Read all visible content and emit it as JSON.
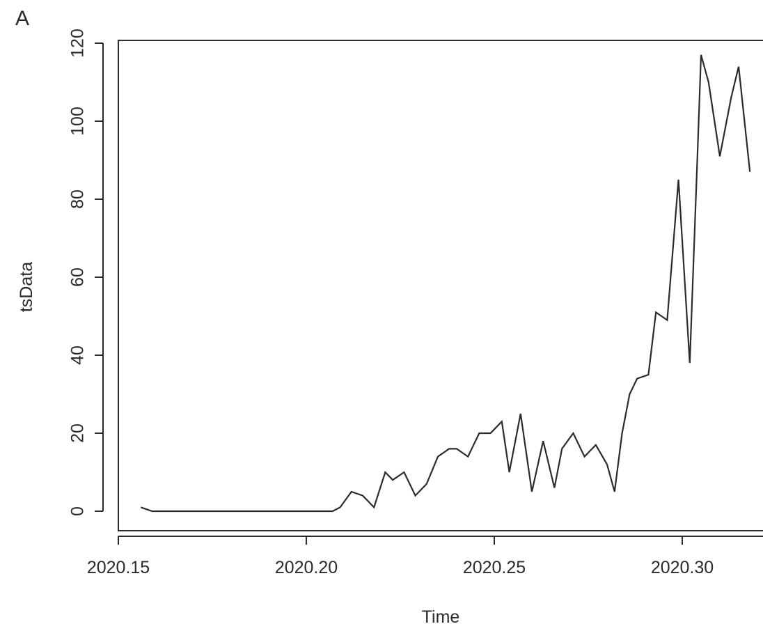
{
  "panel_label": "A",
  "chart_data": {
    "type": "line",
    "xlabel": "Time",
    "ylabel": "tsData",
    "x_ticks": [
      "2020.15",
      "2020.20",
      "2020.25",
      "2020.30"
    ],
    "y_ticks": [
      "0",
      "20",
      "40",
      "60",
      "80",
      "100",
      "120"
    ],
    "xlim": [
      2020.15,
      2020.32
    ],
    "ylim": [
      0,
      120
    ],
    "grid": false,
    "line_color": "#2b2b2b",
    "series": [
      {
        "x": [
          2020.156,
          2020.159,
          2020.162,
          2020.165,
          2020.168,
          2020.171,
          2020.173,
          2020.176,
          2020.179,
          2020.182,
          2020.185,
          2020.188,
          2020.19,
          2020.193,
          2020.196,
          2020.199,
          2020.201,
          2020.204,
          2020.207,
          2020.209,
          2020.212,
          2020.215,
          2020.218,
          2020.221,
          2020.223,
          2020.226,
          2020.229,
          2020.232,
          2020.235,
          2020.238,
          2020.24,
          2020.243,
          2020.246,
          2020.249,
          2020.252,
          2020.254,
          2020.257,
          2020.26,
          2020.263,
          2020.266,
          2020.268,
          2020.271,
          2020.274,
          2020.277,
          2020.28,
          2020.282,
          2020.284,
          2020.286,
          2020.288,
          2020.291,
          2020.293,
          2020.296,
          2020.299,
          2020.302,
          2020.304,
          2020.305,
          2020.307,
          2020.31,
          2020.313,
          2020.315,
          2020.318
        ],
        "y": [
          1,
          0,
          0,
          0,
          0,
          0,
          0,
          0,
          0,
          0,
          0,
          0,
          0,
          0,
          0,
          0,
          0,
          0,
          0,
          1,
          5,
          4,
          1,
          10,
          8,
          10,
          4,
          7,
          14,
          16,
          16,
          14,
          20,
          20,
          23,
          10,
          25,
          5,
          18,
          6,
          16,
          20,
          14,
          17,
          12,
          5,
          20,
          30,
          34,
          35,
          51,
          49,
          85,
          38,
          90,
          117,
          110,
          91,
          106,
          114,
          87
        ]
      }
    ]
  }
}
